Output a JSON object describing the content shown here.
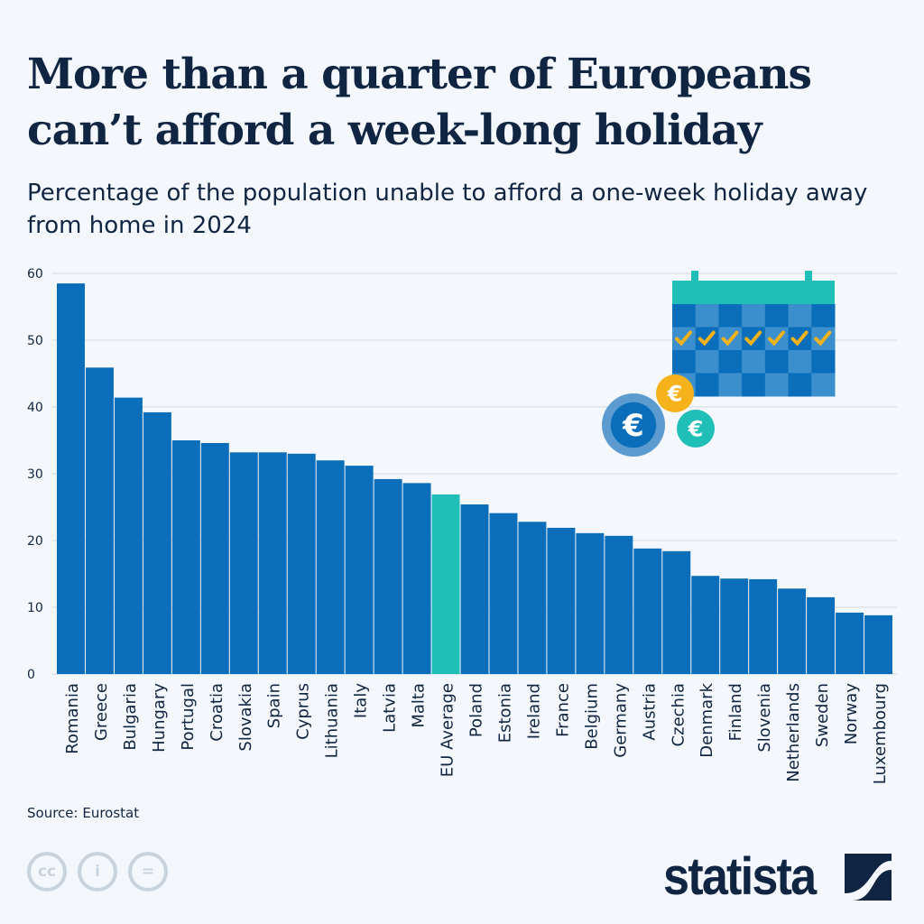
{
  "header": {
    "title": "More than a quarter of Europeans can’t afford a week-long holiday",
    "subtitle": "Percentage of the population unable to afford a one-week holiday away from home in 2024"
  },
  "footer": {
    "source": "Source: Eurostat",
    "logo": "statista",
    "license_icons": [
      "cc-icon",
      "attribution-icon",
      "no-derivatives-icon"
    ]
  },
  "colors": {
    "bar": "#0a6eba",
    "highlight": "#1fbfb8",
    "grid": "#d3d9e2",
    "text": "#0f2542",
    "calendar_header": "#1fbfb8",
    "check": "#f5b21b"
  },
  "chart_data": {
    "type": "bar",
    "title": "",
    "xlabel": "",
    "ylabel": "",
    "ylim": [
      0,
      60
    ],
    "yticks": [
      0,
      10,
      20,
      30,
      40,
      50,
      60
    ],
    "grid": true,
    "highlight": "EU Average",
    "categories": [
      "Romania",
      "Greece",
      "Bulgaria",
      "Hungary",
      "Portugal",
      "Croatia",
      "Slovakia",
      "Spain",
      "Cyprus",
      "Lithuania",
      "Italy",
      "Latvia",
      "Malta",
      "EU Average",
      "Poland",
      "Estonia",
      "Ireland",
      "France",
      "Belgium",
      "Germany",
      "Austria",
      "Czechia",
      "Denmark",
      "Finland",
      "Slovenia",
      "Netherlands",
      "Sweden",
      "Norway",
      "Luxembourg"
    ],
    "values": [
      58.5,
      45.9,
      41.4,
      39.2,
      35.0,
      34.6,
      33.2,
      33.2,
      33.0,
      32.0,
      31.2,
      29.2,
      28.6,
      26.9,
      25.4,
      24.1,
      22.8,
      21.9,
      21.1,
      20.7,
      18.8,
      18.4,
      14.7,
      14.3,
      14.2,
      12.8,
      11.5,
      9.2,
      8.8
    ]
  }
}
